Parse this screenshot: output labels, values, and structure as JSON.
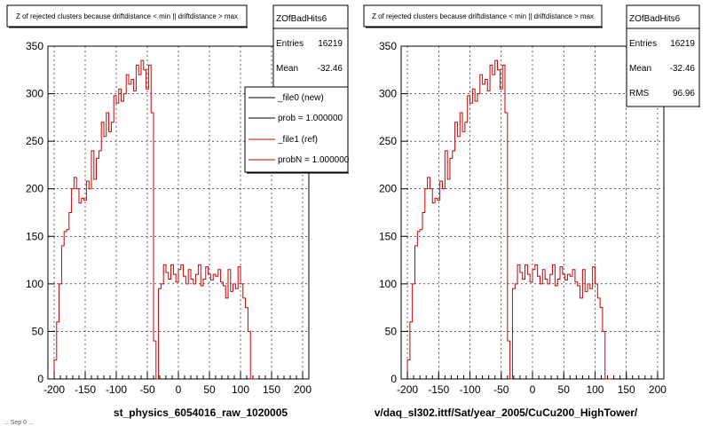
{
  "footer": {
    "date": "... Sep 0 ..."
  },
  "colors": {
    "reference_line": "#cc0000",
    "new_line": "#000000",
    "frame": "#000000",
    "grid": "#000000"
  },
  "chart_data": [
    {
      "type": "histogram",
      "title": "Z of rejected clusters because driftdistance < min || driftdistance > max",
      "xlabel": "st_physics_6054016_raw_1020005",
      "ylabel": "",
      "xlim": [
        -210,
        210
      ],
      "ylim": [
        0,
        350
      ],
      "xticks": [
        "-200",
        "-150",
        "-100",
        "-50",
        "0",
        "50",
        "100",
        "150",
        "200"
      ],
      "yticks": [
        "0",
        "50",
        "100",
        "150",
        "200",
        "250",
        "300",
        "350"
      ],
      "grid": true,
      "bin_start": -200,
      "bin_width": 4,
      "series": [
        {
          "name": "_file1 (ref)",
          "color": "#cc0000",
          "values": [
            20,
            60,
            100,
            140,
            155,
            157,
            175,
            200,
            212,
            200,
            185,
            190,
            188,
            208,
            200,
            240,
            210,
            232,
            240,
            270,
            255,
            280,
            260,
            270,
            298,
            290,
            305,
            292,
            300,
            320,
            310,
            315,
            303,
            330,
            320,
            335,
            325,
            305,
            330,
            280,
            40,
            0,
            95,
            100,
            120,
            112,
            105,
            120,
            110,
            102,
            115,
            120,
            108,
            100,
            115,
            105,
            100,
            110,
            120,
            98,
            105,
            118,
            110,
            104,
            110,
            108,
            115,
            102,
            98,
            85,
            115,
            92,
            100,
            95,
            118,
            100,
            85,
            75,
            50,
            0,
            0,
            0
          ]
        }
      ],
      "legend": {
        "placement": "top-right",
        "entries": [
          {
            "label": "_file0 (new)",
            "color": "#000000"
          },
          {
            "label": "prob = 1.000000",
            "color": "#000000"
          },
          {
            "label": "_file1 (ref)",
            "color": "#cc0000"
          },
          {
            "label": "probN = 1.000000",
            "color": "#cc0000"
          }
        ]
      },
      "stats": {
        "name": "ZOfBadHits6",
        "rows": [
          {
            "label": "Entries",
            "value": "16219"
          },
          {
            "label": "Mean",
            "value": "-32.46"
          }
        ]
      }
    },
    {
      "type": "histogram",
      "title": "Z of rejected clusters because driftdistance < min || driftdistance > max",
      "xlabel": "v/daq_sl302.ittf/Sat/year_2005/CuCu200_HighTower/",
      "ylabel": "",
      "xlim": [
        -210,
        210
      ],
      "ylim": [
        0,
        350
      ],
      "xticks": [
        "-200",
        "-150",
        "-100",
        "-50",
        "0",
        "50",
        "100",
        "150",
        "200"
      ],
      "yticks": [
        "0",
        "50",
        "100",
        "150",
        "200",
        "250",
        "300",
        "350"
      ],
      "grid": true,
      "bin_start": -200,
      "bin_width": 4,
      "series": [
        {
          "name": "",
          "color": "#cc0000",
          "values": [
            20,
            60,
            100,
            140,
            155,
            157,
            175,
            200,
            212,
            200,
            185,
            190,
            188,
            208,
            200,
            240,
            210,
            232,
            240,
            270,
            255,
            280,
            260,
            270,
            298,
            290,
            305,
            292,
            300,
            320,
            310,
            315,
            303,
            330,
            320,
            335,
            325,
            305,
            330,
            280,
            40,
            0,
            95,
            100,
            120,
            112,
            105,
            120,
            110,
            102,
            115,
            120,
            108,
            100,
            115,
            105,
            100,
            110,
            120,
            98,
            105,
            118,
            110,
            104,
            110,
            108,
            115,
            102,
            98,
            85,
            115,
            92,
            100,
            95,
            118,
            100,
            85,
            75,
            50,
            0,
            0,
            0
          ]
        }
      ],
      "stats": {
        "name": "ZOfBadHits6",
        "rows": [
          {
            "label": "Entries",
            "value": "16219"
          },
          {
            "label": "Mean",
            "value": "-32.46"
          },
          {
            "label": "RMS",
            "value": "96.96"
          }
        ]
      }
    }
  ]
}
